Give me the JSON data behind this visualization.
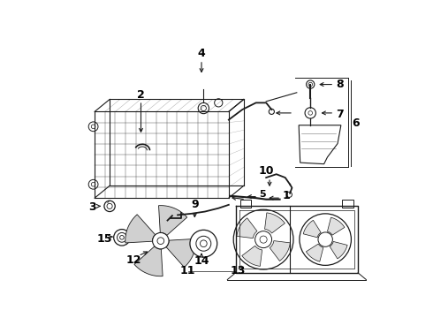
{
  "bg_color": "#ffffff",
  "lc": "#1a1a1a",
  "lw": 0.8,
  "fs": 8,
  "fig_w": 4.9,
  "fig_h": 3.6,
  "dpi": 100
}
